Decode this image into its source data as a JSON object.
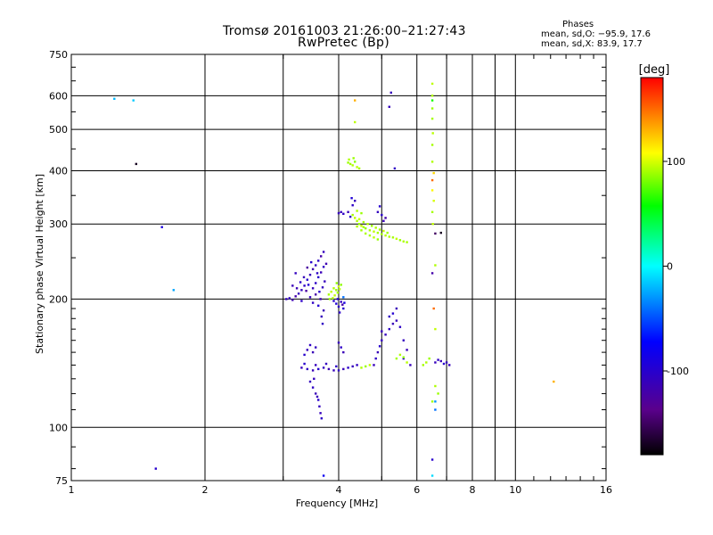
{
  "header": {
    "title_line1": "Tromsø 20161003 21:26:00–21:27:43",
    "title_line2": "RwPretec (Bp)",
    "stats_heading": "Phases",
    "stats_line1": "mean, sd,O: −95.9, 17.6",
    "stats_line2": "mean, sd,X:  83.9, 17.7"
  },
  "chart_data": {
    "type": "scatter",
    "xlabel": "Frequency [MHz]",
    "ylabel": "Stationary phase Virtual Height [km]",
    "xscale": "log",
    "yscale": "log",
    "xlim": [
      1,
      16
    ],
    "ylim": [
      75,
      750
    ],
    "x_ticks": [
      1,
      2,
      4,
      6,
      8,
      10,
      16
    ],
    "x_tick_labels": [
      "1",
      "2",
      "4",
      "6",
      "8",
      "10",
      "16"
    ],
    "x_minor_gridlines": [
      3,
      5,
      7,
      9
    ],
    "y_ticks": [
      75,
      100,
      200,
      300,
      400,
      500,
      600,
      750
    ],
    "y_tick_labels": [
      "75",
      "100",
      "200",
      "300",
      "400",
      "500",
      "600",
      "750"
    ],
    "grid": true,
    "colorbar": {
      "label": "[deg]",
      "min": -180,
      "max": 180,
      "ticks": [
        100,
        0,
        -100
      ],
      "tick_labels": [
        "100",
        "0",
        "-100"
      ]
    },
    "series": [
      {
        "points": [
          [
            3.05,
            200,
            -110
          ],
          [
            3.1,
            201,
            -105
          ],
          [
            3.15,
            199,
            -115
          ],
          [
            3.2,
            203,
            -120
          ],
          [
            3.25,
            206,
            -110
          ],
          [
            3.3,
            210,
            -108
          ],
          [
            3.35,
            215,
            -105
          ],
          [
            3.4,
            222,
            -100
          ],
          [
            3.45,
            228,
            -112
          ],
          [
            3.5,
            235,
            -118
          ],
          [
            3.55,
            240,
            -106
          ],
          [
            3.6,
            246,
            -104
          ],
          [
            3.65,
            252,
            -120
          ],
          [
            3.7,
            258,
            -108
          ],
          [
            3.38,
            209,
            -125
          ],
          [
            3.42,
            216,
            -96
          ],
          [
            3.5,
            212,
            -110
          ],
          [
            3.55,
            218,
            -104
          ],
          [
            3.6,
            225,
            -100
          ],
          [
            3.65,
            231,
            -112
          ],
          [
            3.7,
            238,
            -106
          ],
          [
            3.75,
            242,
            -116
          ],
          [
            3.3,
            198,
            -104
          ],
          [
            3.45,
            202,
            -110
          ],
          [
            3.55,
            205,
            -122
          ],
          [
            3.62,
            208,
            -100
          ],
          [
            3.68,
            213,
            -108
          ],
          [
            3.72,
            220,
            -110
          ],
          [
            3.5,
            196,
            -105
          ],
          [
            3.6,
            193,
            -98
          ],
          [
            3.7,
            188,
            -112
          ],
          [
            3.66,
            182,
            -110
          ],
          [
            3.68,
            175,
            -106
          ],
          [
            3.64,
            200,
            -115
          ],
          [
            3.58,
            230,
            -104
          ],
          [
            3.47,
            244,
            -100
          ],
          [
            3.4,
            237,
            -125
          ],
          [
            3.34,
            225,
            -110
          ],
          [
            3.28,
            219,
            -102
          ],
          [
            3.22,
            212,
            -114
          ],
          [
            3.2,
            230,
            -108
          ],
          [
            3.15,
            215,
            -112
          ]
        ]
      },
      {
        "points": [
          [
            3.8,
            205,
            90
          ],
          [
            3.85,
            208,
            95
          ],
          [
            3.9,
            212,
            92
          ],
          [
            3.95,
            210,
            88
          ],
          [
            4.0,
            214,
            98
          ],
          [
            4.05,
            216,
            85
          ],
          [
            3.88,
            201,
            92
          ],
          [
            3.92,
            204,
            96
          ],
          [
            3.98,
            207,
            90
          ],
          [
            4.02,
            211,
            94
          ],
          [
            3.82,
            200,
            88
          ],
          [
            3.96,
            218,
            86
          ]
        ]
      },
      {
        "points": [
          [
            3.9,
            198,
            -100
          ],
          [
            3.95,
            195,
            -95
          ],
          [
            4.0,
            192,
            -105
          ],
          [
            4.05,
            197,
            -110
          ],
          [
            4.1,
            190,
            -98
          ],
          [
            4.02,
            186,
            -102
          ],
          [
            3.98,
            200,
            -96
          ],
          [
            4.08,
            194,
            -120
          ],
          [
            4.12,
            196,
            -90
          ]
        ]
      },
      {
        "points": [
          [
            4.3,
            315,
            90
          ],
          [
            4.35,
            310,
            95
          ],
          [
            4.4,
            305,
            92
          ],
          [
            4.45,
            300,
            88
          ],
          [
            4.5,
            297,
            96
          ],
          [
            4.55,
            295,
            90
          ],
          [
            4.6,
            293,
            86
          ],
          [
            4.7,
            290,
            92
          ],
          [
            4.8,
            288,
            95
          ],
          [
            4.9,
            286,
            90
          ],
          [
            5.0,
            284,
            88
          ],
          [
            5.1,
            282,
            94
          ],
          [
            5.2,
            280,
            92
          ],
          [
            5.3,
            279,
            90
          ],
          [
            5.4,
            277,
            96
          ],
          [
            5.5,
            275,
            88
          ],
          [
            5.6,
            273,
            92
          ],
          [
            5.7,
            272,
            90
          ],
          [
            4.4,
            322,
            92
          ],
          [
            4.5,
            318,
            88
          ],
          [
            4.45,
            308,
            96
          ],
          [
            4.55,
            303,
            90
          ],
          [
            4.65,
            300,
            94
          ],
          [
            4.75,
            297,
            88
          ],
          [
            4.85,
            294,
            92
          ],
          [
            4.95,
            291,
            90
          ],
          [
            5.05,
            289,
            96
          ],
          [
            5.15,
            286,
            88
          ],
          [
            4.6,
            285,
            92
          ],
          [
            4.7,
            282,
            90
          ],
          [
            4.8,
            279,
            94
          ],
          [
            4.9,
            276,
            88
          ],
          [
            4.4,
            296,
            92
          ],
          [
            4.5,
            290,
            90
          ]
        ]
      },
      {
        "points": [
          [
            4.0,
            318,
            -110
          ],
          [
            4.1,
            317,
            -105
          ],
          [
            4.2,
            320,
            -112
          ],
          [
            4.25,
            312,
            -100
          ],
          [
            4.05,
            320,
            -110
          ],
          [
            4.9,
            320,
            -108
          ],
          [
            5.0,
            315,
            -102
          ],
          [
            5.1,
            310,
            -118
          ],
          [
            4.95,
            330,
            -100
          ],
          [
            5.05,
            305,
            -112
          ],
          [
            4.3,
            332,
            -104
          ],
          [
            4.28,
            345,
            -95
          ],
          [
            4.35,
            340,
            -110
          ]
        ]
      },
      {
        "points": [
          [
            4.2,
            418,
            88
          ],
          [
            4.25,
            415,
            90
          ],
          [
            4.3,
            412,
            92
          ],
          [
            4.35,
            420,
            85
          ],
          [
            4.4,
            408,
            95
          ],
          [
            4.45,
            405,
            90
          ],
          [
            4.22,
            425,
            92
          ],
          [
            4.32,
            428,
            88
          ]
        ]
      },
      {
        "points": [
          [
            3.3,
            138,
            -110
          ],
          [
            3.4,
            137,
            -105
          ],
          [
            3.5,
            136,
            -112
          ],
          [
            3.6,
            137,
            -100
          ],
          [
            3.7,
            138,
            -108
          ],
          [
            3.8,
            137,
            -115
          ],
          [
            3.9,
            136,
            -110
          ],
          [
            4.0,
            136,
            -104
          ],
          [
            4.1,
            137,
            -112
          ],
          [
            4.2,
            138,
            -102
          ],
          [
            4.3,
            139,
            -110
          ],
          [
            4.4,
            140,
            -106
          ],
          [
            3.35,
            141,
            -100
          ],
          [
            3.55,
            140,
            -110
          ],
          [
            3.75,
            141,
            -108
          ],
          [
            3.95,
            139,
            -102
          ]
        ]
      },
      {
        "points": [
          [
            3.45,
            128,
            -110
          ],
          [
            3.5,
            124,
            -105
          ],
          [
            3.55,
            120,
            -112
          ],
          [
            3.6,
            116,
            -100
          ],
          [
            3.62,
            112,
            -108
          ],
          [
            3.64,
            108,
            -110
          ],
          [
            3.66,
            105,
            -104
          ],
          [
            3.58,
            118,
            -112
          ],
          [
            3.52,
            130,
            -110
          ]
        ]
      },
      {
        "points": [
          [
            3.4,
            152,
            -110
          ],
          [
            3.45,
            156,
            -105
          ],
          [
            3.5,
            150,
            -112
          ],
          [
            3.35,
            148,
            -100
          ],
          [
            3.55,
            154,
            -108
          ],
          [
            4.0,
            158,
            -110
          ],
          [
            4.05,
            154,
            -104
          ],
          [
            4.1,
            150,
            -112
          ]
        ]
      },
      {
        "points": [
          [
            4.8,
            140,
            -110
          ],
          [
            4.85,
            145,
            -105
          ],
          [
            4.9,
            150,
            -112
          ],
          [
            4.95,
            155,
            -100
          ],
          [
            5.0,
            160,
            -108
          ],
          [
            5.1,
            165,
            -110
          ],
          [
            5.2,
            170,
            -104
          ],
          [
            5.3,
            175,
            -112
          ],
          [
            5.4,
            178,
            -110
          ],
          [
            5.5,
            172,
            -104
          ],
          [
            5.3,
            185,
            -98
          ],
          [
            5.4,
            190,
            -112
          ],
          [
            5.2,
            182,
            -106
          ],
          [
            5.0,
            168,
            -110
          ],
          [
            5.6,
            160,
            -108
          ],
          [
            5.7,
            152,
            -112
          ],
          [
            5.6,
            145,
            -105
          ],
          [
            5.8,
            140,
            -110
          ]
        ]
      },
      {
        "points": [
          [
            4.5,
            138,
            92
          ],
          [
            4.6,
            139,
            88
          ],
          [
            4.7,
            140,
            95
          ],
          [
            5.4,
            145,
            90
          ],
          [
            5.5,
            148,
            92
          ],
          [
            5.6,
            146,
            86
          ],
          [
            5.7,
            142,
            94
          ],
          [
            6.2,
            140,
            90
          ],
          [
            6.3,
            142,
            92
          ],
          [
            6.4,
            145,
            88
          ]
        ]
      },
      {
        "points": [
          [
            6.6,
            142,
            -110
          ],
          [
            6.7,
            144,
            -105
          ],
          [
            6.8,
            143,
            -112
          ],
          [
            6.9,
            141,
            -100
          ],
          [
            7.0,
            142,
            -108
          ],
          [
            7.1,
            140,
            -110
          ]
        ]
      },
      {
        "points": [
          [
            6.5,
            640,
            95
          ],
          [
            6.5,
            600,
            92
          ],
          [
            6.5,
            560,
            88
          ],
          [
            6.5,
            530,
            90
          ],
          [
            6.52,
            490,
            94
          ],
          [
            6.5,
            460,
            90
          ],
          [
            6.5,
            420,
            92
          ],
          [
            6.55,
            395,
            120
          ],
          [
            6.5,
            380,
            150
          ],
          [
            6.5,
            360,
            110
          ],
          [
            6.55,
            340,
            100
          ],
          [
            6.5,
            320,
            90
          ],
          [
            6.52,
            300,
            96
          ],
          [
            6.6,
            240,
            92
          ],
          [
            6.55,
            190,
            150
          ],
          [
            6.6,
            170,
            96
          ],
          [
            6.6,
            125,
            92
          ],
          [
            6.7,
            120,
            88
          ],
          [
            6.5,
            115,
            90
          ],
          [
            6.5,
            585,
            60
          ]
        ]
      },
      {
        "points": [
          [
            1.25,
            590,
            -20
          ],
          [
            1.38,
            585,
            -15
          ],
          [
            1.6,
            295,
            -90
          ],
          [
            1.7,
            210,
            -25
          ],
          [
            1.55,
            80,
            -100
          ],
          [
            3.7,
            77,
            -80
          ],
          [
            6.5,
            84,
            -100
          ],
          [
            6.5,
            77,
            -10
          ],
          [
            6.5,
            230,
            -120
          ],
          [
            6.6,
            115,
            -30
          ],
          [
            6.6,
            110,
            -40
          ],
          [
            5.25,
            610,
            -110
          ],
          [
            5.2,
            565,
            -110
          ],
          [
            5.35,
            405,
            -105
          ],
          [
            1.4,
            415,
            -170
          ],
          [
            6.6,
            285,
            -150
          ],
          [
            6.8,
            286,
            -170
          ],
          [
            4.35,
            585,
            130
          ],
          [
            4.35,
            520,
            95
          ],
          [
            12.2,
            128,
            130
          ],
          [
            4.1,
            202,
            -40
          ]
        ]
      }
    ]
  }
}
